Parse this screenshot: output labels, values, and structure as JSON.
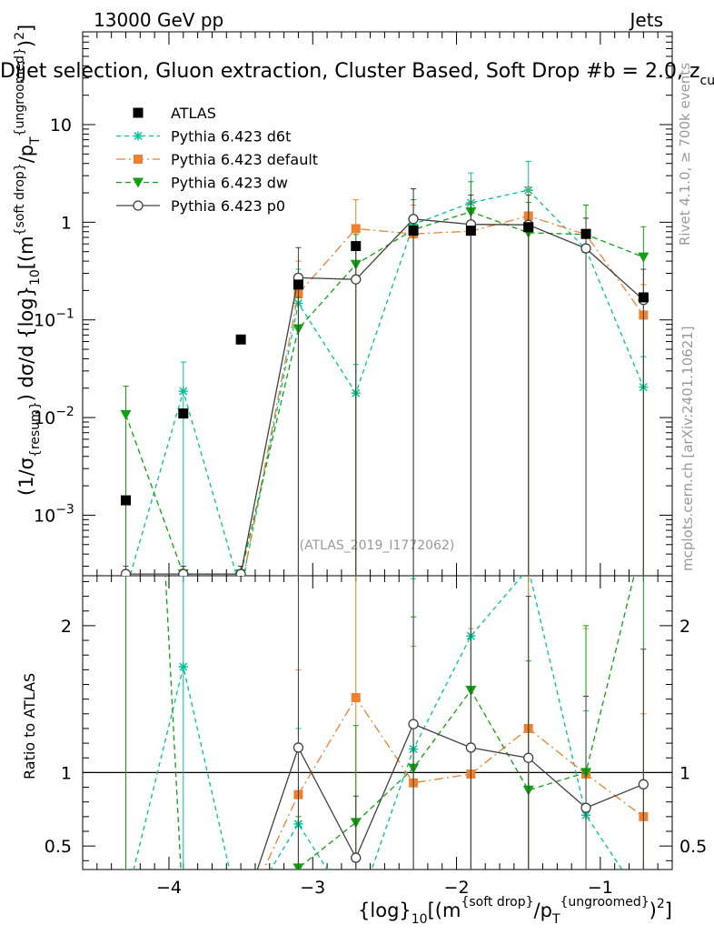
{
  "header": {
    "left": "13000 GeV pp",
    "right": "Jets",
    "title": "Dijet selection, Gluon extraction, Cluster Based, Soft Drop #b = 2.0, z",
    "title_sub": "cut",
    "title_tail": " ="
  },
  "side_labels": {
    "rivet": "Rivet 4.1.0, ≥ 700k events",
    "mcplots": "mcplots.cern.ch [arXiv:2401.10621]"
  },
  "analysis_id": "(ATLAS_2019_I1772062)",
  "chart_data": {
    "type": "line",
    "x": [
      -4.3,
      -3.9,
      -3.5,
      -3.1,
      -2.7,
      -2.3,
      -1.9,
      -1.5,
      -1.1,
      -0.7
    ],
    "xlim": [
      -4.6,
      -0.5
    ],
    "x_ticks": [
      {
        "v": -4,
        "label": "−4"
      },
      {
        "v": -3,
        "label": "−3"
      },
      {
        "v": -2,
        "label": "−2"
      },
      {
        "v": -1,
        "label": "−1"
      }
    ],
    "main": {
      "ylim_log10": [
        -3.62,
        1.95
      ],
      "y_ticks": [
        {
          "exp": -3,
          "base": "10",
          "sup": "−3"
        },
        {
          "exp": -2,
          "base": "10",
          "sup": "−2"
        },
        {
          "exp": -1,
          "base": "10",
          "sup": "−1"
        },
        {
          "exp": 0,
          "base": "1",
          "sup": ""
        },
        {
          "exp": 1,
          "base": "10",
          "sup": ""
        }
      ],
      "ylabel": {
        "pre": "(1/σ",
        "sub1": "{resum}",
        "mid": ") dσ/d {log}",
        "sub2": "10",
        "post": "[(m",
        "sup1": "{soft drop}",
        "post2": "/p",
        "sub3": "T",
        "sup2": "{ungroomed}",
        "post3": ")",
        "sup3": "2",
        "post4": "]"
      }
    },
    "ratio": {
      "ylim": [
        0.34,
        2.34
      ],
      "y_ticks": [
        {
          "v": 0.5,
          "label": "0.5"
        },
        {
          "v": 1,
          "label": "1"
        },
        {
          "v": 2,
          "label": "2"
        }
      ],
      "ylabel": "Ratio to ATLAS"
    },
    "xlabel": {
      "pre": "{log}",
      "sub1": "10",
      "mid": "[(m",
      "sup1": "{soft drop}",
      "mid2": "/p",
      "sub2": "T",
      "sup2": "{ungroomed}",
      "post": ")",
      "sup3": "2",
      "post2": "]"
    },
    "atlas": {
      "name": "ATLAS",
      "color": "#000000",
      "y": [
        0.00142,
        0.011,
        0.063,
        0.23,
        0.57,
        0.82,
        0.82,
        0.89,
        0.76,
        0.17
      ],
      "err": [
        0.0001,
        0.001,
        0.004,
        0.01,
        0.03,
        0.04,
        0.04,
        0.04,
        0.04,
        0.01
      ]
    },
    "series": [
      {
        "name": "Pythia 6.423 d6t",
        "color": "#00c299",
        "dash": "5,4",
        "marker": "star",
        "y": [
          0.00017,
          0.0186,
          0.00017,
          0.148,
          0.0178,
          0.95,
          1.58,
          2.13,
          0.53,
          0.0205
        ],
        "up": [
          0.0002,
          0.037,
          0.0002,
          0.33,
          0.035,
          2.2,
          3.2,
          4.2,
          1.1,
          0.042
        ],
        "ratio": [
          0.12,
          1.72,
          0.003,
          0.65,
          0.031,
          1.16,
          1.93,
          2.39,
          0.71,
          0.12
        ]
      },
      {
        "name": "Pythia 6.423 default",
        "color": "#f08030",
        "dash": "10,4,2,4",
        "marker": "square",
        "y": [
          0.00017,
          0.00017,
          0.00017,
          0.185,
          0.86,
          0.76,
          0.81,
          1.16,
          0.75,
          0.112
        ],
        "up": [
          0.0002,
          0.0002,
          0.0002,
          0.4,
          1.7,
          1.5,
          1.6,
          2.3,
          1.5,
          0.23
        ],
        "ratio": [
          0.12,
          0.015,
          0.003,
          0.85,
          1.51,
          0.93,
          0.99,
          1.3,
          0.99,
          0.7
        ]
      },
      {
        "name": "Pythia 6.423 dw",
        "color": "#10a010",
        "dash": "6,4",
        "marker": "triangle",
        "y": [
          0.0107,
          0.00025,
          0.00025,
          0.081,
          0.37,
          0.84,
          1.28,
          0.78,
          0.75,
          0.44
        ],
        "up": [
          0.021,
          0.0003,
          0.0003,
          0.17,
          0.75,
          1.7,
          2.6,
          1.6,
          1.5,
          0.9
        ],
        "ratio": [
          7.5,
          0.02,
          0.004,
          0.35,
          0.66,
          1.03,
          1.56,
          0.88,
          1.0,
          2.6
        ]
      },
      {
        "name": "Pythia 6.423 p0",
        "color": "#404040",
        "dash": "",
        "marker": "circle",
        "y": [
          0.00025,
          0.00025,
          0.00025,
          0.27,
          0.26,
          1.08,
          0.95,
          0.94,
          0.54,
          0.16
        ],
        "up": [
          0.0003,
          0.0003,
          0.0003,
          0.55,
          0.52,
          2.2,
          1.9,
          1.9,
          1.1,
          0.33
        ],
        "ratio": [
          0.17,
          0.023,
          0.004,
          1.17,
          0.42,
          1.33,
          1.17,
          1.1,
          0.76,
          0.92
        ]
      }
    ]
  }
}
